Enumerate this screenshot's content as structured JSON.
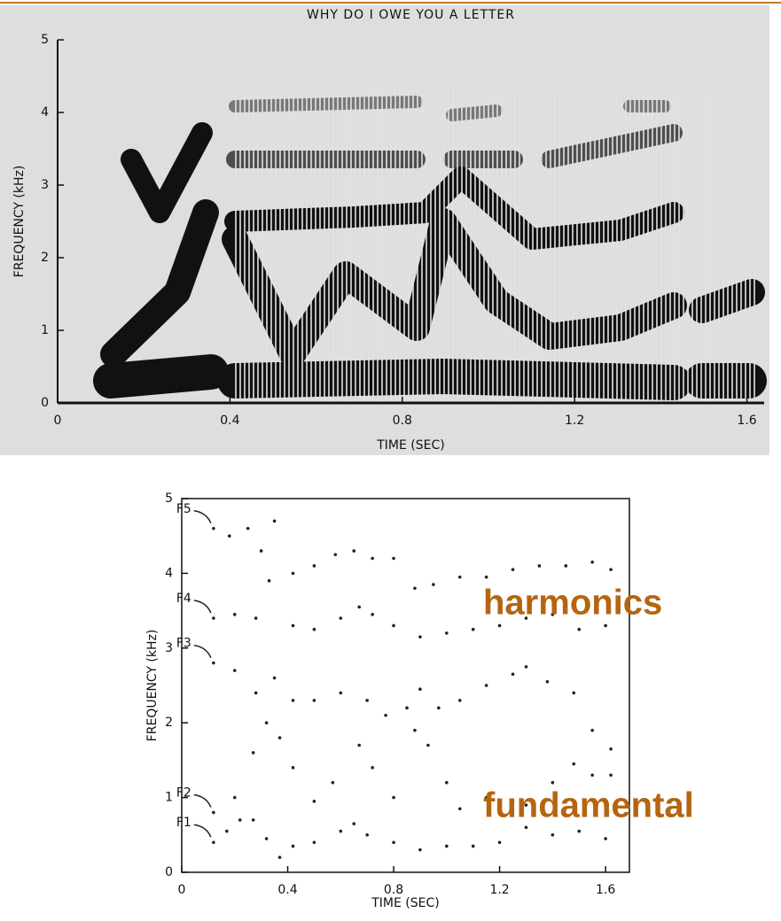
{
  "chart_data": [
    {
      "type": "spectrogram",
      "title": "WHY DO I OWE YOU A LETTER",
      "xlabel": "TIME (SEC)",
      "ylabel": "FREQUENCY (kHz)",
      "xlim": [
        0,
        1.64
      ],
      "ylim": [
        0,
        5
      ],
      "xticks": [
        0,
        0.4,
        0.8,
        1.2,
        1.6
      ],
      "yticks": [
        0,
        1,
        2,
        3,
        4,
        5
      ]
    },
    {
      "type": "scatter",
      "xlabel": "TIME (SEC)",
      "ylabel": "FREQUENCY (kHz)",
      "xlim": [
        0,
        1.69
      ],
      "ylim": [
        0,
        5
      ],
      "xticks": [
        0,
        0.4,
        0.8,
        1.2,
        1.6
      ],
      "yticks": [
        0,
        1,
        2,
        3,
        4,
        5
      ],
      "series": [
        {
          "name": "F5",
          "color": "#222222",
          "x": [
            0.12,
            0.18,
            0.25,
            0.3,
            0.35,
            0.42,
            0.5,
            0.58,
            0.65,
            0.72,
            0.8,
            0.88,
            0.95,
            1.05,
            1.15,
            1.25,
            1.35,
            1.45,
            1.55,
            1.62
          ],
          "values": [
            4.6,
            4.5,
            4.6,
            4.3,
            4.7,
            4.0,
            4.1,
            4.25,
            4.3,
            4.2,
            4.2,
            3.8,
            3.85,
            3.95,
            3.95,
            4.05,
            4.1,
            4.1,
            4.15,
            4.05
          ]
        },
        {
          "name": "F4",
          "color": "#222222",
          "x": [
            0.12,
            0.2,
            0.28,
            0.33,
            0.42,
            0.5,
            0.6,
            0.67,
            0.72,
            0.8,
            0.9,
            1.0,
            1.1,
            1.2,
            1.3,
            1.4,
            1.5,
            1.6
          ],
          "values": [
            3.4,
            3.45,
            3.4,
            3.9,
            3.3,
            3.25,
            3.4,
            3.55,
            3.45,
            3.3,
            3.15,
            3.2,
            3.25,
            3.3,
            3.4,
            3.45,
            3.25,
            3.3
          ]
        },
        {
          "name": "F3",
          "color": "#222222",
          "x": [
            0.12,
            0.2,
            0.28,
            0.35,
            0.42,
            0.5,
            0.6,
            0.7,
            0.77,
            0.85,
            0.9,
            0.97,
            1.05,
            1.15,
            1.25,
            1.3,
            1.38,
            1.48,
            1.55,
            1.62
          ],
          "values": [
            2.8,
            2.7,
            2.4,
            2.6,
            2.3,
            2.3,
            2.4,
            2.3,
            2.1,
            2.2,
            2.45,
            2.2,
            2.3,
            2.5,
            2.65,
            2.75,
            2.55,
            2.4,
            1.9,
            1.65
          ]
        },
        {
          "name": "F2",
          "color": "#222222",
          "x": [
            0.12,
            0.2,
            0.27,
            0.32,
            0.37,
            0.42,
            0.5,
            0.57,
            0.67,
            0.72,
            0.8,
            0.88,
            0.93,
            1.0,
            1.05,
            1.15,
            1.25,
            1.3,
            1.4,
            1.48,
            1.55,
            1.62
          ],
          "values": [
            0.8,
            1.0,
            1.6,
            2.0,
            1.8,
            1.4,
            0.95,
            1.2,
            1.7,
            1.4,
            1.0,
            1.9,
            1.7,
            1.2,
            0.85,
            1.0,
            0.95,
            0.9,
            1.2,
            1.45,
            1.3,
            1.3
          ]
        },
        {
          "name": "F1",
          "color": "#222222",
          "x": [
            0.12,
            0.17,
            0.22,
            0.27,
            0.32,
            0.37,
            0.42,
            0.5,
            0.6,
            0.65,
            0.7,
            0.8,
            0.9,
            1.0,
            1.1,
            1.2,
            1.3,
            1.4,
            1.5,
            1.6
          ],
          "values": [
            0.4,
            0.55,
            0.7,
            0.7,
            0.45,
            0.2,
            0.35,
            0.4,
            0.55,
            0.65,
            0.5,
            0.4,
            0.3,
            0.35,
            0.35,
            0.4,
            0.6,
            0.5,
            0.55,
            0.45
          ]
        }
      ],
      "annotations": [
        "harmonics",
        "fundamental"
      ]
    }
  ]
}
